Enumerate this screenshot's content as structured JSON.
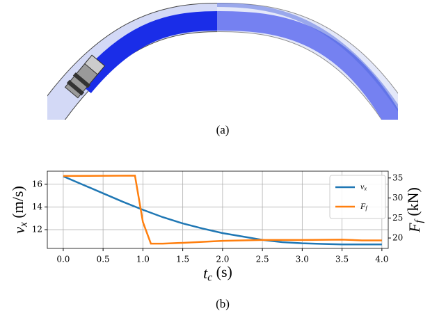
{
  "figure": {
    "caption_a": "(a)",
    "caption_b": "(b)"
  },
  "chart_data": {
    "type": "line",
    "xlabel": "tc (s)",
    "ylabel": "vx (m/s)",
    "y2label": "Ff (kN)",
    "xlim": [
      -0.2,
      4.08
    ],
    "ylim": [
      10.35,
      17.15
    ],
    "y2lim": [
      17.4,
      36.7
    ],
    "xticks": [
      {
        "value": 0,
        "label": "0.0"
      },
      0.5,
      {
        "value": 1,
        "label": "1.0"
      },
      1.5,
      {
        "value": 2,
        "label": "2.0"
      },
      2.5,
      {
        "value": 3,
        "label": "3.0"
      },
      3.5,
      {
        "value": 4,
        "label": "4.0"
      }
    ],
    "yticks": [
      12,
      14,
      16
    ],
    "y2ticks": [
      20,
      25,
      30,
      35
    ],
    "grid": true,
    "legend": "upper right",
    "series": [
      {
        "name": "vx",
        "color": "#1f77b4",
        "x": [
          0,
          0.25,
          0.5,
          0.75,
          1,
          1.25,
          1.5,
          1.75,
          2,
          2.25,
          2.5,
          2.75,
          3,
          3.25,
          3.5,
          3.75,
          4
        ],
        "values": [
          16.7,
          15.95,
          15.2,
          14.45,
          13.75,
          13.1,
          12.55,
          12.1,
          11.7,
          11.4,
          11.1,
          10.9,
          10.8,
          10.75,
          10.7,
          10.7,
          10.7
        ]
      },
      {
        "name": "Ff",
        "color": "#ff7f0e",
        "axis": "y2",
        "x": [
          0,
          0.9,
          1,
          1.1,
          1.25,
          1.5,
          2,
          2.5,
          3,
          3.5,
          3.75,
          4
        ],
        "values": [
          35.5,
          35.6,
          24,
          18.6,
          18.6,
          18.8,
          19.3,
          19.5,
          19.5,
          19.6,
          19.4,
          19.4
        ]
      }
    ]
  }
}
